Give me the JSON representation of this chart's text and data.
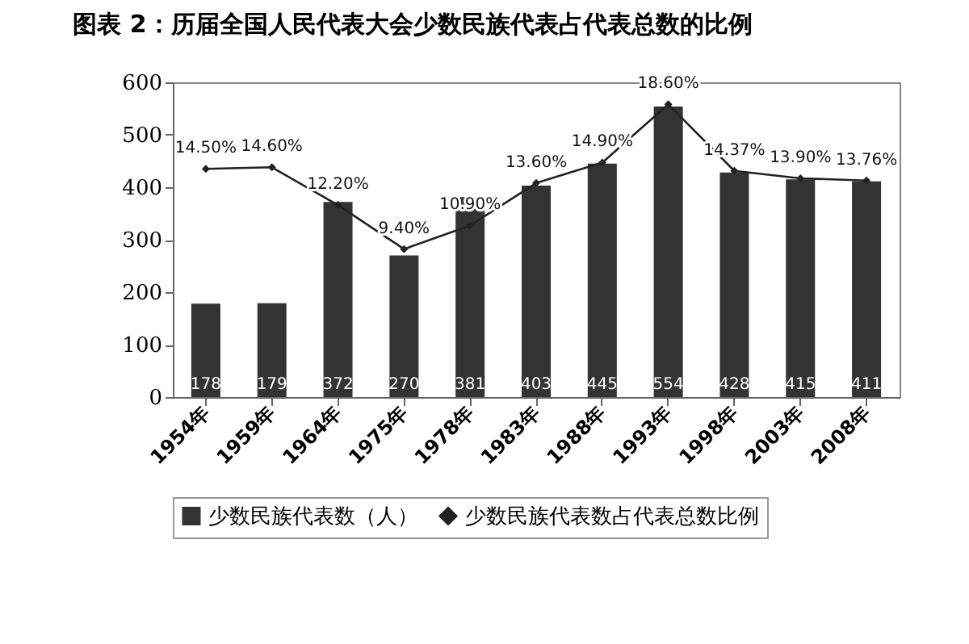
{
  "chart_data": {
    "type": "bar",
    "title": "图表 2：历届全国人民代表大会少数民族代表占代表总数的比例",
    "categories": [
      "1954年",
      "1959年",
      "1964年",
      "1975年",
      "1978年",
      "1983年",
      "1988年",
      "1993年",
      "1998年",
      "2003年",
      "2008年"
    ],
    "series": [
      {
        "name": "少数民族代表数（人）",
        "color": "#333333",
        "values": [
          178,
          179,
          372,
          270,
          381,
          403,
          445,
          554,
          428,
          415,
          411
        ],
        "value_labels": [
          "178",
          "179",
          "372",
          "270",
          "381",
          "403",
          "445",
          "554",
          "428",
          "415",
          "411"
        ]
      },
      {
        "name": "少数民族代表数占代表总数比例",
        "type": "line",
        "axis": "y2",
        "color": "#222222",
        "marker": "diamond",
        "values": [
          14.5,
          14.6,
          12.2,
          9.4,
          10.9,
          13.6,
          14.9,
          18.6,
          14.37,
          13.9,
          13.76
        ],
        "value_labels": [
          "14.50%",
          "14.60%",
          "12.20%",
          "9.40%",
          "10.90%",
          "13.60%",
          "14.90%",
          "18.60%",
          "14.37%",
          "13.90%",
          "13.76%"
        ]
      }
    ],
    "ylim": [
      0,
      600
    ],
    "yticks": [
      0,
      100,
      200,
      300,
      400,
      500,
      600
    ],
    "y2lim": [
      0,
      20
    ],
    "grid": false,
    "legend": "bottom"
  }
}
